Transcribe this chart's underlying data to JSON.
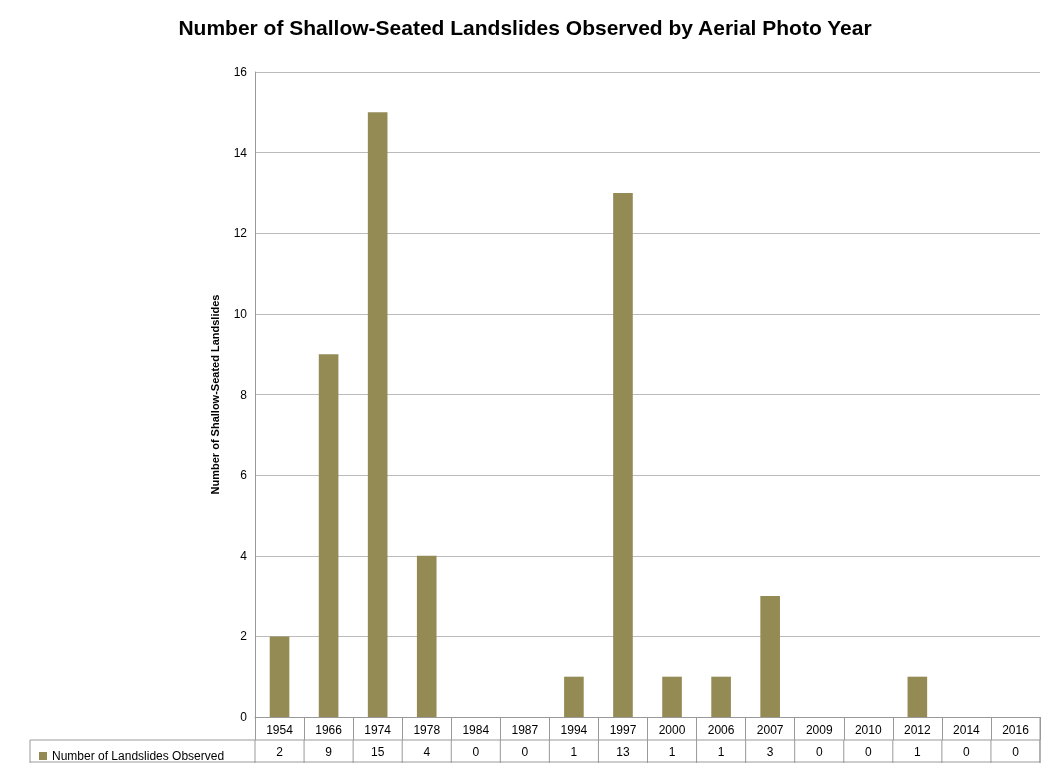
{
  "chart_data": {
    "type": "bar",
    "title": "Number of Shallow-Seated Landslides Observed by Aerial Photo Year",
    "ylabel": "Number of Shallow-Seated Landslides",
    "categories": [
      "1954",
      "1966",
      "1974",
      "1978",
      "1984",
      "1987",
      "1994",
      "1997",
      "2000",
      "2006",
      "2007",
      "2009",
      "2010",
      "2012",
      "2014",
      "2016"
    ],
    "series": [
      {
        "name": "Number of Landslides Observed",
        "color": "#948a54",
        "values": [
          2,
          9,
          15,
          4,
          0,
          0,
          1,
          13,
          1,
          1,
          3,
          0,
          0,
          1,
          0,
          0
        ]
      }
    ],
    "ylim": [
      0,
      16
    ],
    "yticks": [
      0,
      2,
      4,
      6,
      8,
      10,
      12,
      14,
      16
    ],
    "grid": "y",
    "legend": "bottom left",
    "data_labels": true
  }
}
